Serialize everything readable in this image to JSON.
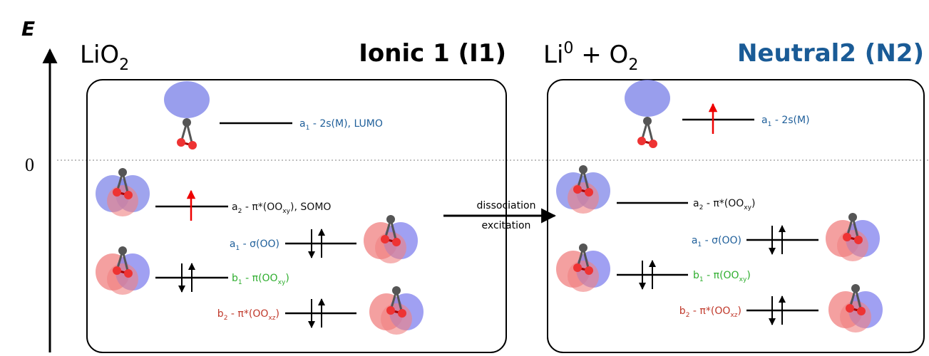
{
  "axis": {
    "label": "E",
    "zero": "0"
  },
  "panels": [
    {
      "formula": [
        {
          "t": "LiO"
        },
        {
          "sub": "2"
        }
      ],
      "title": "Ionic 1 (I1)",
      "levels": [
        {
          "label": [
            {
              "t": "a"
            },
            {
              "sub": "1"
            },
            {
              "t": " - 2s(M), LUMO"
            }
          ]
        },
        {
          "label": [
            {
              "t": "a"
            },
            {
              "sub": "2"
            },
            {
              "t": " - π*(OO"
            },
            {
              "sub": "xy"
            },
            {
              "t": "), SOMO"
            }
          ]
        },
        {
          "label": [
            {
              "t": "a"
            },
            {
              "sub": "1"
            },
            {
              "t": " - σ(OO)"
            }
          ]
        },
        {
          "label": [
            {
              "t": "b"
            },
            {
              "sub": "1"
            },
            {
              "t": " - π(OO"
            },
            {
              "sub": "xy"
            },
            {
              "t": ")"
            }
          ]
        },
        {
          "label": [
            {
              "t": "b"
            },
            {
              "sub": "2"
            },
            {
              "t": " - π*(OO"
            },
            {
              "sub": "xz"
            },
            {
              "t": ")"
            }
          ]
        }
      ]
    },
    {
      "formula": [
        {
          "t": "Li"
        },
        {
          "sup": "0"
        },
        {
          "t": " + O"
        },
        {
          "sub": "2"
        }
      ],
      "title": "Neutral2 (N2)",
      "levels": [
        {
          "label": [
            {
              "t": "a"
            },
            {
              "sub": "1"
            },
            {
              "t": " - 2s(M)"
            }
          ]
        },
        {
          "label": [
            {
              "t": "a"
            },
            {
              "sub": "2"
            },
            {
              "t": " - π*(OO"
            },
            {
              "sub": "xy"
            },
            {
              "t": ")"
            }
          ]
        },
        {
          "label": [
            {
              "t": "a"
            },
            {
              "sub": "1"
            },
            {
              "t": " - σ(OO)"
            }
          ]
        },
        {
          "label": [
            {
              "t": "b"
            },
            {
              "sub": "1"
            },
            {
              "t": " - π(OO"
            },
            {
              "sub": "xy"
            },
            {
              "t": ")"
            }
          ]
        },
        {
          "label": [
            {
              "t": "b"
            },
            {
              "sub": "2"
            },
            {
              "t": " - π*(OO"
            },
            {
              "sub": "xz"
            },
            {
              "t": ")"
            }
          ]
        }
      ]
    }
  ],
  "transition": {
    "top": "dissociation",
    "bottom": "excitation"
  }
}
